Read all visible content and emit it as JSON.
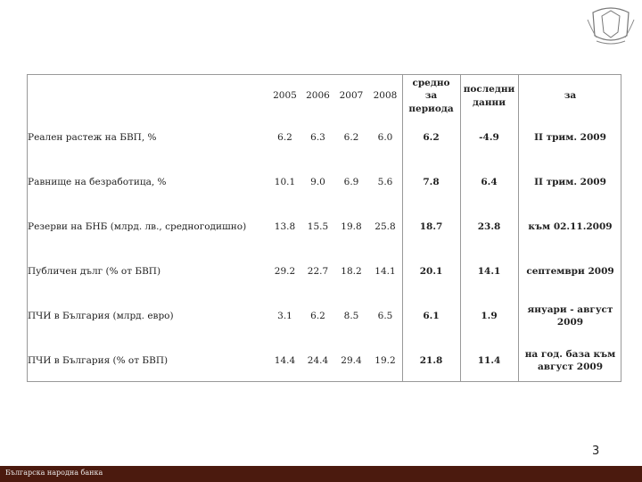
{
  "table": {
    "header": [
      "",
      "2005",
      "2006",
      "2007",
      "2008",
      "средно за периода",
      "последни данни",
      "за"
    ],
    "rows": [
      [
        "Реален растеж на БВП, %",
        "6.2",
        "6.3",
        "6.2",
        "6.0",
        "6.2",
        "-4.9",
        "II трим. 2009"
      ],
      [
        "Равнище на безработица, %",
        "10.1",
        "9.0",
        "6.9",
        "5.6",
        "7.8",
        "6.4",
        "II трим. 2009"
      ],
      [
        "Резерви на БНБ (млрд. лв., средногодишно)",
        "13.8",
        "15.5",
        "19.8",
        "25.8",
        "18.7",
        "23.8",
        "към 02.11.2009"
      ],
      [
        "Публичен дълг (% от БВП)",
        "29.2",
        "22.7",
        "18.2",
        "14.1",
        "20.1",
        "14.1",
        "септември 2009"
      ],
      [
        "ПЧИ в България  (млрд. евро)",
        "3.1",
        "6.2",
        "8.5",
        "6.5",
        "6.1",
        "1.9",
        "януари - август 2009"
      ],
      [
        "ПЧИ в България  (% от БВП)",
        "14.4",
        "24.4",
        "29.4",
        "19.2",
        "21.8",
        "11.4",
        "на год. база към август 2009"
      ]
    ]
  },
  "page_number": "3",
  "footer": "Българска народна банка"
}
